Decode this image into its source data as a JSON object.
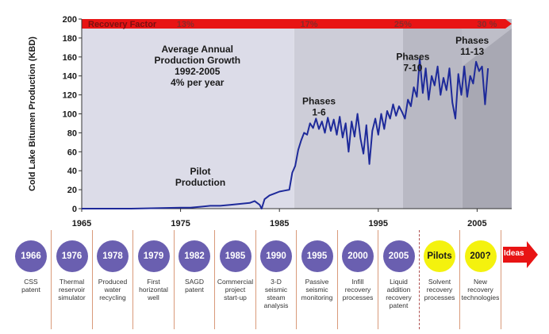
{
  "chart_data": {
    "type": "line",
    "ylabel": "Cold Lake Bitumen Production (KBD)",
    "xlabel": "",
    "xlim": [
      1965,
      2008.5
    ],
    "ylim": [
      0,
      200
    ],
    "x_ticks": [
      1965,
      1975,
      1985,
      1995,
      2005
    ],
    "y_ticks": [
      0,
      20,
      40,
      60,
      80,
      100,
      120,
      140,
      160,
      180,
      200
    ],
    "grid": false,
    "background_bands": [
      {
        "from": 1965,
        "to": 1986.5,
        "color": "#dcdce8"
      },
      {
        "from": 1986.5,
        "to": 1997.5,
        "color": "#cdcdd8"
      },
      {
        "from": 1997.5,
        "to": 2003.5,
        "color": "#b9b9c4"
      },
      {
        "from": 2003.5,
        "to": 2008.5,
        "color": "#a8a8b3"
      }
    ],
    "series": [
      {
        "color": "#1e2a9a",
        "x": [
          1965,
          1970,
          1975,
          1976,
          1977,
          1978,
          1979,
          1980,
          1981,
          1982,
          1982.5,
          1983,
          1983.2,
          1983.5,
          1984,
          1984.5,
          1985,
          1985.5,
          1986,
          1986.3,
          1986.6,
          1986.9,
          1987.2,
          1987.5,
          1987.8,
          1988.1,
          1988.4,
          1988.7,
          1989,
          1989.3,
          1989.6,
          1989.9,
          1990.2,
          1990.5,
          1990.8,
          1991.1,
          1991.4,
          1991.7,
          1992,
          1992.3,
          1992.6,
          1992.9,
          1993.2,
          1993.5,
          1993.8,
          1994.1,
          1994.4,
          1994.7,
          1995,
          1995.3,
          1995.6,
          1995.9,
          1996.2,
          1996.5,
          1996.8,
          1997.1,
          1997.4,
          1997.7,
          1998,
          1998.3,
          1998.6,
          1998.9,
          1999.2,
          1999.5,
          1999.8,
          2000.1,
          2000.4,
          2000.7,
          2001,
          2001.3,
          2001.6,
          2001.9,
          2002.2,
          2002.5,
          2002.8,
          2003.1,
          2003.4,
          2003.7,
          2004,
          2004.3,
          2004.6,
          2004.9,
          2005.2,
          2005.5,
          2005.8,
          2006.1
        ],
        "values": [
          0,
          0,
          1,
          1,
          2,
          3,
          3,
          4,
          5,
          6,
          8,
          4,
          0,
          10,
          14,
          16,
          18,
          19,
          20,
          38,
          45,
          62,
          72,
          80,
          78,
          90,
          85,
          95,
          84,
          92,
          80,
          96,
          82,
          94,
          78,
          97,
          75,
          90,
          60,
          92,
          76,
          100,
          74,
          58,
          88,
          47,
          82,
          95,
          78,
          100,
          84,
          103,
          95,
          110,
          98,
          108,
          102,
          95,
          115,
          108,
          128,
          118,
          158,
          122,
          148,
          115,
          140,
          130,
          150,
          120,
          138,
          125,
          148,
          112,
          95,
          142,
          120,
          150,
          118,
          140,
          132,
          155,
          145,
          150,
          110,
          148
        ]
      }
    ],
    "recovery_bar": {
      "label": "Recovery Factor",
      "factors": [
        {
          "label": "13%",
          "x": 1975.5
        },
        {
          "label": "17%",
          "x": 1988
        },
        {
          "label": "25%",
          "x": 1997.5
        },
        {
          "label": "30 %",
          "x": 2006
        }
      ]
    },
    "annotations": [
      {
        "lines": [
          "Average Annual",
          "Production Growth",
          "1992-2005",
          "4% per year"
        ],
        "x": 1976.7,
        "y": 165
      },
      {
        "lines": [
          "Pilot",
          "Production"
        ],
        "x": 1977,
        "y": 36
      },
      {
        "lines": [
          "Phases",
          "1-6"
        ],
        "x": 1989,
        "y": 110
      },
      {
        "lines": [
          "Phases",
          "7-10"
        ],
        "x": 1998.5,
        "y": 157
      },
      {
        "lines": [
          "Phases",
          "11-13"
        ],
        "x": 2004.5,
        "y": 174
      }
    ],
    "colors": {
      "line": "#1e2a9a",
      "recovery_bar": "#e81414",
      "purple": "#6a5fb0",
      "yellow": "#f4f20e"
    }
  },
  "timeline": [
    {
      "label": "1966",
      "desc": "CSS\npatent",
      "style": "purple"
    },
    {
      "label": "1976",
      "desc": "Thermal\nreservoir\nsimulator",
      "style": "purple"
    },
    {
      "label": "1978",
      "desc": "Produced\nwater\nrecycling",
      "style": "purple"
    },
    {
      "label": "1979",
      "desc": "First\nhorizontal\nwell",
      "style": "purple"
    },
    {
      "label": "1982",
      "desc": "SAGD\npatent",
      "style": "purple"
    },
    {
      "label": "1985",
      "desc": "Commercial\nproject\nstart-up",
      "style": "purple"
    },
    {
      "label": "1990",
      "desc": "3-D\nseismic\nsteam\nanalysis",
      "style": "purple"
    },
    {
      "label": "1995",
      "desc": "Passive\nseismic\nmonitoring",
      "style": "purple"
    },
    {
      "label": "2000",
      "desc": "Infill\nrecovery\nprocesses",
      "style": "purple"
    },
    {
      "label": "2005",
      "desc": "Liquid\naddition\nrecovery\npatent",
      "style": "purple"
    },
    {
      "label": "Pilots",
      "desc": "Solvent\nrecovery\nprocesses",
      "style": "yellow"
    },
    {
      "label": "200?",
      "desc": "New\nrecovery\ntechnologies",
      "style": "yellow"
    },
    {
      "label": "Ideas",
      "desc": "",
      "style": "arrow"
    }
  ]
}
